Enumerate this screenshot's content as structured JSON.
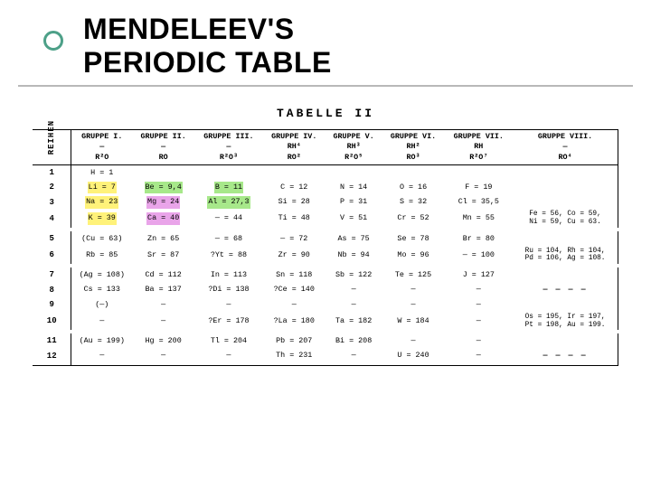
{
  "slide": {
    "title_line1": "MENDELEEV'S",
    "title_line2": "PERIODIC TABLE",
    "bullet_color": "#4da088",
    "underline_color": "#b8b8b8"
  },
  "table": {
    "title": "TABELLE  II",
    "reihen_label": "REIHEN",
    "font_family": "Courier New",
    "cell_fontsize": 8.4,
    "header_border_color": "#000000",
    "highlight_colors": {
      "yellow": "#fff27a",
      "green": "#a7e88a",
      "pink": "#e9a4e9"
    },
    "columns": [
      {
        "name": "GRUPPE I.",
        "sub1": "—",
        "sub2": "R²O"
      },
      {
        "name": "GRUPPE II.",
        "sub1": "—",
        "sub2": "RO"
      },
      {
        "name": "GRUPPE III.",
        "sub1": "—",
        "sub2": "R²O³"
      },
      {
        "name": "GRUPPE IV.",
        "sub1": "RH⁴",
        "sub2": "RO²"
      },
      {
        "name": "GRUPPE V.",
        "sub1": "RH³",
        "sub2": "R²O⁵"
      },
      {
        "name": "GRUPPE VI.",
        "sub1": "RH²",
        "sub2": "RO³"
      },
      {
        "name": "GRUPPE VII.",
        "sub1": "RH",
        "sub2": "R²O⁷"
      },
      {
        "name": "GRUPPE VIII.",
        "sub1": "—",
        "sub2": "RO⁴"
      }
    ],
    "rows": [
      {
        "n": "1",
        "cells": [
          "H = 1",
          "",
          "",
          "",
          "",
          "",
          "",
          ""
        ],
        "hl": {}
      },
      {
        "n": "2",
        "cells": [
          "Li = 7",
          "Be = 9,4",
          "B = 11",
          "C = 12",
          "N = 14",
          "O = 16",
          "F = 19",
          ""
        ],
        "hl": {
          "0": "y",
          "1": "g",
          "2": "g"
        }
      },
      {
        "n": "3",
        "cells": [
          "Na = 23",
          "Mg = 24",
          "Al = 27,3",
          "Si = 28",
          "P = 31",
          "S = 32",
          "Cl = 35,5",
          ""
        ],
        "hl": {
          "0": "y",
          "1": "p",
          "2": "g"
        }
      },
      {
        "n": "4",
        "cells": [
          "K = 39",
          "Ca = 40",
          "— = 44",
          "Ti = 48",
          "V = 51",
          "Cr = 52",
          "Mn = 55",
          "Fe = 56, Co = 59,\nNi = 59, Cu = 63."
        ],
        "hl": {
          "0": "y",
          "1": "p"
        }
      },
      {
        "n": "5",
        "cells": [
          "(Cu = 63)",
          "Zn = 65",
          "— = 68",
          "— = 72",
          "As = 75",
          "Se = 78",
          "Br = 80",
          ""
        ],
        "hl": {}
      },
      {
        "n": "6",
        "cells": [
          "Rb = 85",
          "Sr = 87",
          "?Yt = 88",
          "Zr = 90",
          "Nb = 94",
          "Mo = 96",
          "— = 100",
          "Ru = 104, Rh = 104,\nPd = 106, Ag = 108."
        ],
        "hl": {}
      },
      {
        "n": "7",
        "cells": [
          "(Ag = 108)",
          "Cd = 112",
          "In = 113",
          "Sn = 118",
          "Sb = 122",
          "Te = 125",
          "J = 127",
          ""
        ],
        "hl": {}
      },
      {
        "n": "8",
        "cells": [
          "Cs = 133",
          "Ba = 137",
          "?Di = 138",
          "?Ce = 140",
          "—",
          "—",
          "—",
          "— — — —"
        ],
        "hl": {}
      },
      {
        "n": "9",
        "cells": [
          "(—)",
          "—",
          "—",
          "—",
          "—",
          "—",
          "—",
          ""
        ],
        "hl": {}
      },
      {
        "n": "10",
        "cells": [
          "—",
          "—",
          "?Er = 178",
          "?La = 180",
          "Ta = 182",
          "W = 184",
          "—",
          "Os = 195, Ir = 197,\nPt = 198, Au = 199."
        ],
        "hl": {}
      },
      {
        "n": "11",
        "cells": [
          "(Au = 199)",
          "Hg = 200",
          "Tl = 204",
          "Pb = 207",
          "Bi = 208",
          "—",
          "—",
          ""
        ],
        "hl": {}
      },
      {
        "n": "12",
        "cells": [
          "—",
          "—",
          "—",
          "Th = 231",
          "—",
          "U = 240",
          "—",
          "— — — —"
        ],
        "hl": {}
      }
    ],
    "separators_after_rows": [
      4,
      6,
      10
    ]
  }
}
